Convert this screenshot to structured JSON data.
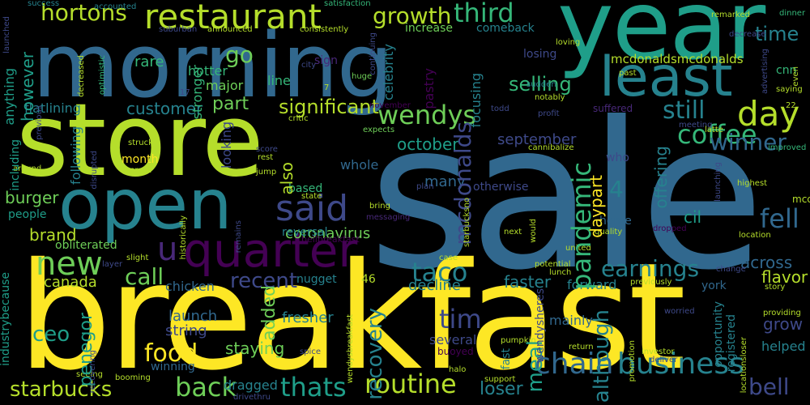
{
  "words": {
    "sale": "sale",
    "breakfast": "breakfast",
    "store": "store",
    "morning": "morning",
    "year": "year",
    "open": "open",
    "least": "least",
    "quarter": "quarter",
    "restaurant": "restaurant",
    "new": "new",
    "said": "said",
    "business": "business",
    "chain": "chain",
    "routine": "routine",
    "thats": "thats",
    "back": "back",
    "starbucks": "starbucks",
    "food": "food",
    "earnings": "earnings",
    "wendys": "wendys",
    "day": "day",
    "tim": "tim",
    "taco": "taco",
    "third": "third",
    "growth": "growth",
    "hortons": "hortons",
    "call": "call",
    "coffee": "coffee",
    "still": "still",
    "fell": "fell",
    "mcdonalds": "mcdonalds",
    "pandemic": "pandemic",
    "recovery": "recovery",
    "meal": "meal",
    "u": "u",
    "go": "go",
    "significant": "significant",
    "customer": "customer",
    "part": "part",
    "ceo": "ceo",
    "burger": "burger",
    "brand": "brand",
    "canada": "canada",
    "recent": "recent",
    "coronavirus": "coronavirus",
    "winner": "winner",
    "october": "october",
    "september": "september",
    "selling": "selling",
    "mcdonaldsmcdonalds": "mcdonaldsmcdonalds",
    "time": "time",
    "cnn": "cnn",
    "bell": "bell",
    "grow": "grow",
    "across": "across",
    "flavor": "flavor",
    "helped": "helped",
    "loser": "loser",
    "faster": "faster",
    "forward": "forward",
    "decline": "decline",
    "penegor": "penegor",
    "launch": "launch",
    "string": "string",
    "chicken": "chicken",
    "staying": "staying",
    "dragged": "dragged",
    "however": "however",
    "flatlining": "flatlining",
    "rare": "rare",
    "hotter": "hotter",
    "major": "major",
    "line": "line",
    "also": "also",
    "based": "based",
    "whole": "whole",
    "many": "many",
    "otherwise": "otherwise",
    "home": "home",
    "offering": "offering",
    "who": "who",
    "daypart": "daypart",
    "although": "although",
    "mainly": "mainly",
    "several": "several",
    "fresher": "fresher",
    "added": "added",
    "nugget": "nugget",
    "reversal": "reversal",
    "bellbreakfast": "bellbreakfast",
    "obliterated": "obliterated",
    "people": "people",
    "month": "month",
    "winning": "winning",
    "increase": "increase",
    "comeback": "comeback",
    "losing": "losing",
    "pastry": "pastry",
    "celebrity": "celebrity",
    "focusing": "focusing",
    "sign": "sign",
    "stronger": "stronger",
    "looking": "looking",
    "following": "following",
    "including": "including",
    "anything": "anything",
    "industrybecause": "industrybecause",
    "cil": "cil",
    "york": "york",
    "four": "4",
    "fortysix": "46",
    "seven": "7",
    "seventeen": "17",
    "twentytwo": "22",
    "mccafe": "mccafé",
    "success": "success",
    "accounted": "accounted",
    "satisfaction": "satisfaction",
    "announced": "announced",
    "consistently": "consistently",
    "suburban": "suburban",
    "launched": "launched",
    "decreased": "decreased",
    "optimistic": "optimistic",
    "previous": "previous",
    "critic": "critic",
    "huge": "huge",
    "city": "city",
    "continuing": "continuing",
    "november": "november",
    "expects": "expects",
    "todd": "todd",
    "notably": "notably",
    "profit": "profit",
    "suffered": "suffered",
    "sudden": "sudden",
    "past": "past",
    "loving": "loving",
    "decrease": "decrease",
    "remarked": "remarked",
    "dinner": "dinner",
    "advertising": "advertising",
    "saying": "saying",
    "even": "even",
    "meeting": "meeting",
    "latte": "latte",
    "improved": "improved",
    "launching": "launching",
    "highest": "highest",
    "cannibalize": "cannibalize",
    "struck": "struck",
    "disrupted": "disrupted",
    "werent": "werent",
    "around": "around",
    "score": "score",
    "rest": "rest",
    "jump": "jump",
    "historically": "historically",
    "remains": "remains",
    "state": "state",
    "bring": "bring",
    "messaging": "messaging",
    "plan": "plan",
    "next": "next",
    "would": "would",
    "quality": "quality",
    "dropped": "dropped",
    "location": "location",
    "united": "united",
    "potential": "potential",
    "lunch": "lunch",
    "change": "change",
    "previously": "previously",
    "story": "story",
    "providing": "providing",
    "worried": "worried",
    "registered": "registered",
    "opportunity": "opportunity",
    "investor": "investor",
    "deliver": "deliver",
    "promotion": "promotion",
    "locationsloser": "locationsloser",
    "return": "return",
    "pumpkin": "pumpkin",
    "buoyed": "buoyed",
    "spice": "spice",
    "halo": "halo",
    "support": "support",
    "fast": "fast",
    "wendysheres": "wendysheres",
    "wendysbreakfast": "wendysbreakfast",
    "starbucksno": "starbucksno",
    "case": "case",
    "slight": "slight",
    "layer": "layer",
    "recovering": "recovering",
    "seeing": "seeing",
    "booming": "booming",
    "drivethru": "drivethru"
  },
  "colors": {
    "background": "#000000",
    "yellow": "#fde725",
    "lime": "#b5de2b",
    "green": "#6ece58",
    "seafoam": "#35b779",
    "teal": "#1f9e89",
    "tealblue": "#26828e",
    "steel": "#31688e",
    "indigo": "#3e4989",
    "purple": "#482878",
    "darkpurple": "#440154"
  }
}
